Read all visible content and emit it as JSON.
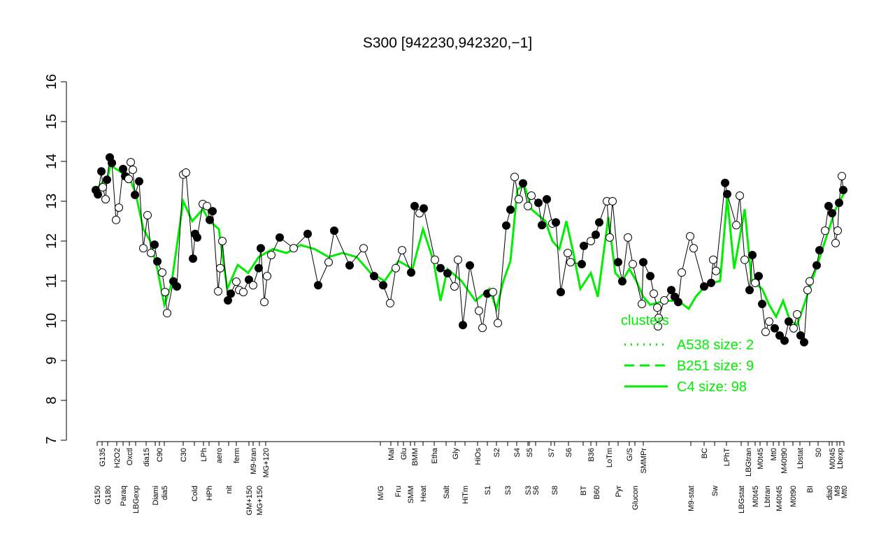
{
  "chart_data": {
    "type": "scatter",
    "title": "S300 [942230,942320,−1]",
    "xlim": [
      0,
      108
    ],
    "ylim": [
      7,
      16
    ],
    "yticks": [
      7,
      8,
      9,
      10,
      11,
      12,
      13,
      14,
      15,
      16
    ],
    "xticks": [
      {
        "value": 0.9,
        "label": "G150"
      },
      {
        "value": 1.6,
        "label": "G135"
      },
      {
        "value": 2.4,
        "label": "G180"
      },
      {
        "value": 3.7,
        "label": "H2O2"
      },
      {
        "value": 4.6,
        "label": "Paraq"
      },
      {
        "value": 5.5,
        "label": "Oxctl"
      },
      {
        "value": 6.4,
        "label": "LBGexp"
      },
      {
        "value": 7.9,
        "label": "dia15"
      },
      {
        "value": 9.2,
        "label": "Diami"
      },
      {
        "value": 9.8,
        "label": "C90"
      },
      {
        "value": 10.5,
        "label": "dia5"
      },
      {
        "value": 13.2,
        "label": "C30"
      },
      {
        "value": 14.8,
        "label": "Cold"
      },
      {
        "value": 16.1,
        "label": "LPh"
      },
      {
        "value": 16.9,
        "label": "HPh"
      },
      {
        "value": 18.3,
        "label": "aero"
      },
      {
        "value": 19.7,
        "label": "nit"
      },
      {
        "value": 20.8,
        "label": "ferm"
      },
      {
        "value": 22.6,
        "label": "GM+150"
      },
      {
        "value": 23.2,
        "label": "M9-tran"
      },
      {
        "value": 24.1,
        "label": "MG+150"
      },
      {
        "value": 25.0,
        "label": "MG+120"
      },
      {
        "value": 41.4,
        "label": "M/G"
      },
      {
        "value": 42.9,
        "label": "Mal"
      },
      {
        "value": 43.9,
        "label": "Fru"
      },
      {
        "value": 44.7,
        "label": "Glu"
      },
      {
        "value": 45.7,
        "label": "SMM"
      },
      {
        "value": 46.3,
        "label": "BMM"
      },
      {
        "value": 47.5,
        "label": "Heat"
      },
      {
        "value": 49.1,
        "label": "Etha"
      },
      {
        "value": 50.8,
        "label": "Salt"
      },
      {
        "value": 52.1,
        "label": "Gly"
      },
      {
        "value": 53.5,
        "label": "HiTm"
      },
      {
        "value": 55.3,
        "label": "HiOs"
      },
      {
        "value": 56.7,
        "label": "S1"
      },
      {
        "value": 58.0,
        "label": "S2"
      },
      {
        "value": 59.6,
        "label": "S3"
      },
      {
        "value": 60.9,
        "label": "S4"
      },
      {
        "value": 62.5,
        "label": "S3"
      },
      {
        "value": 62.7,
        "label": "S5"
      },
      {
        "value": 63.6,
        "label": "S6"
      },
      {
        "value": 65.8,
        "label": "S7"
      },
      {
        "value": 66.3,
        "label": "S8"
      },
      {
        "value": 68.3,
        "label": "S6"
      },
      {
        "value": 70.4,
        "label": "BT"
      },
      {
        "value": 71.5,
        "label": "B36"
      },
      {
        "value": 72.3,
        "label": "B60"
      },
      {
        "value": 74.1,
        "label": "LoTm"
      },
      {
        "value": 75.4,
        "label": "Pyr"
      },
      {
        "value": 77.0,
        "label": "G/S"
      },
      {
        "value": 77.8,
        "label": "Glucon"
      },
      {
        "value": 79.0,
        "label": "SMMPr"
      },
      {
        "value": 85.8,
        "label": "M9-stat"
      },
      {
        "value": 87.7,
        "label": "BC"
      },
      {
        "value": 89.2,
        "label": "Sw"
      },
      {
        "value": 90.9,
        "label": "LPhT"
      },
      {
        "value": 93.0,
        "label": "LBGstat"
      },
      {
        "value": 94.0,
        "label": "LBGtran"
      },
      {
        "value": 95.0,
        "label": "M0t45"
      },
      {
        "value": 95.7,
        "label": "M0t45"
      },
      {
        "value": 96.7,
        "label": "Lbtran"
      },
      {
        "value": 97.6,
        "label": "Mt0"
      },
      {
        "value": 98.4,
        "label": "M40t45"
      },
      {
        "value": 99.1,
        "label": "M40t90"
      },
      {
        "value": 100.4,
        "label": "M0t90"
      },
      {
        "value": 101.4,
        "label": "Lbstat"
      },
      {
        "value": 102.8,
        "label": "BI"
      },
      {
        "value": 104.0,
        "label": "S0"
      },
      {
        "value": 105.6,
        "label": "dia0"
      },
      {
        "value": 106.0,
        "label": "M0t45"
      },
      {
        "value": 106.7,
        "label": "M9"
      },
      {
        "value": 107.1,
        "label": "Lbexp"
      },
      {
        "value": 107.7,
        "label": "Mt0"
      }
    ],
    "x": [
      0.7,
      1.0,
      1.5,
      1.7,
      2.1,
      2.3,
      2.7,
      3.0,
      3.6,
      4.0,
      4.6,
      4.9,
      5.4,
      5.7,
      6.0,
      6.3,
      6.9,
      7.5,
      8.1,
      8.6,
      9.1,
      9.5,
      10.2,
      10.6,
      10.9,
      11.8,
      12.3,
      13.2,
      13.6,
      14.6,
      14.9,
      15.2,
      16.0,
      16.6,
      17.0,
      17.4,
      18.2,
      18.5,
      18.8,
      19.6,
      20.0,
      20.8,
      21.2,
      21.8,
      22.6,
      23.2,
      24.0,
      24.3,
      24.8,
      25.2,
      25.8,
      27.0,
      29.0,
      31.0,
      32.5,
      34.0,
      34.8,
      37.0,
      39.0,
      40.5,
      41.8,
      42.8,
      43.6,
      44.5,
      45.8,
      46.3,
      47.0,
      47.6,
      49.2,
      50.0,
      51.0,
      52.0,
      52.5,
      53.2,
      54.2,
      55.5,
      56.0,
      56.7,
      57.5,
      58.2,
      59.4,
      60.0,
      60.6,
      61.2,
      61.8,
      62.5,
      63.0,
      64.0,
      64.5,
      65.2,
      66.0,
      66.5,
      67.2,
      68.2,
      68.6,
      70.2,
      70.5,
      71.5,
      72.2,
      72.7,
      73.8,
      74.2,
      74.6,
      75.4,
      76.0,
      76.8,
      77.5,
      78.8,
      79.0,
      80.0,
      80.5,
      81.0,
      81.1,
      81.2,
      82.0,
      83.0,
      83.5,
      84.0,
      84.5,
      85.7,
      86.2,
      87.7,
      88.7,
      89.0,
      89.4,
      90.7,
      91.0,
      92.3,
      92.8,
      93.5,
      94.2,
      94.6,
      95.0,
      95.5,
      96.0,
      96.5,
      97.0,
      97.8,
      98.5,
      99.2,
      99.8,
      100.5,
      101.0,
      101.5,
      102.0,
      102.5,
      102.8,
      103.8,
      104.2,
      105.0,
      105.5,
      106.0,
      106.5,
      106.8,
      107.0,
      107.4,
      107.6
    ],
    "values": [
      13.28,
      13.17,
      13.75,
      13.35,
      13.05,
      13.54,
      14.1,
      13.96,
      12.53,
      12.84,
      13.81,
      13.63,
      13.56,
      13.98,
      13.79,
      13.16,
      13.5,
      11.82,
      12.65,
      11.7,
      11.91,
      11.49,
      11.21,
      10.72,
      10.19,
      10.99,
      10.86,
      13.67,
      13.72,
      11.56,
      12.18,
      12.09,
      12.93,
      12.88,
      12.53,
      12.75,
      10.74,
      11.32,
      12.0,
      10.51,
      10.68,
      10.98,
      10.77,
      10.72,
      11.03,
      10.89,
      11.32,
      11.82,
      10.47,
      11.12,
      11.65,
      12.09,
      11.82,
      12.18,
      10.89,
      11.47,
      12.26,
      11.39,
      11.82,
      11.12,
      10.89,
      10.44,
      11.32,
      11.77,
      11.21,
      12.88,
      12.7,
      12.82,
      11.53,
      11.32,
      11.19,
      10.86,
      11.53,
      9.89,
      11.39,
      10.25,
      9.82,
      10.68,
      10.72,
      9.94,
      12.39,
      12.79,
      13.61,
      13.05,
      13.45,
      12.88,
      13.14,
      12.96,
      12.4,
      13.05,
      12.44,
      12.47,
      10.72,
      11.7,
      11.47,
      11.42,
      11.88,
      12.0,
      12.16,
      12.47,
      13.0,
      12.09,
      13.0,
      11.47,
      10.99,
      12.09,
      11.42,
      10.42,
      11.47,
      11.12,
      10.68,
      10.33,
      9.86,
      10.07,
      10.51,
      10.77,
      10.6,
      10.47,
      11.21,
      12.12,
      11.82,
      10.86,
      10.95,
      11.53,
      11.25,
      13.46,
      13.18,
      12.4,
      13.14,
      11.53,
      10.77,
      11.65,
      10.95,
      11.12,
      10.42,
      9.72,
      9.98,
      9.81,
      9.63,
      9.5,
      9.98,
      9.81,
      10.16,
      9.63,
      9.46,
      10.77,
      10.99,
      11.39,
      11.77,
      12.26,
      12.88,
      12.7,
      11.95,
      12.26,
      12.96,
      13.63,
      13.28
    ],
    "point_colors": [
      "#000",
      "#000",
      "#000",
      "#fff",
      "#fff",
      "#000",
      "#000",
      "#000",
      "#fff",
      "#fff",
      "#000",
      "#000",
      "#fff",
      "#fff",
      "#fff",
      "#000",
      "#000",
      "#fff",
      "#fff",
      "#fff",
      "#000",
      "#000",
      "#fff",
      "#fff",
      "#fff",
      "#000",
      "#000",
      "#fff",
      "#fff",
      "#000",
      "#000",
      "#000",
      "#fff",
      "#fff",
      "#000",
      "#000",
      "#fff",
      "#fff",
      "#fff",
      "#000",
      "#000",
      "#fff",
      "#fff",
      "#fff",
      "#000",
      "#fff",
      "#000",
      "#000",
      "#fff",
      "#fff",
      "#fff",
      "#000",
      "#fff",
      "#000",
      "#000",
      "#fff",
      "#000",
      "#000",
      "#fff",
      "#000",
      "#000",
      "#fff",
      "#fff",
      "#fff",
      "#000",
      "#000",
      "#fff",
      "#000",
      "#fff",
      "#000",
      "#000",
      "#fff",
      "#fff",
      "#000",
      "#000",
      "#fff",
      "#fff",
      "#000",
      "#fff",
      "#fff",
      "#000",
      "#000",
      "#fff",
      "#fff",
      "#000",
      "#fff",
      "#fff",
      "#000",
      "#000",
      "#000",
      "#fff",
      "#000",
      "#000",
      "#fff",
      "#fff",
      "#000",
      "#000",
      "#fff",
      "#000",
      "#000",
      "#fff",
      "#fff",
      "#fff",
      "#000",
      "#000",
      "#fff",
      "#fff",
      "#fff",
      "#000",
      "#000",
      "#fff",
      "#fff",
      "#fff",
      "#fff",
      "#fff",
      "#000",
      "#000",
      "#000",
      "#fff",
      "#fff",
      "#fff",
      "#000",
      "#000",
      "#fff",
      "#fff",
      "#000",
      "#000",
      "#fff",
      "#fff",
      "#fff",
      "#000",
      "#000",
      "#fff",
      "#000",
      "#000",
      "#fff",
      "#fff",
      "#000",
      "#000",
      "#000",
      "#000",
      "#fff",
      "#fff",
      "#000",
      "#000",
      "#fff",
      "#fff",
      "#000",
      "#000",
      "#fff",
      "#000",
      "#000",
      "#fff",
      "#fff",
      "#000",
      "#fff",
      "#000"
    ],
    "cluster_line": {
      "x": [
        0.7,
        2.4,
        2.8,
        4.6,
        5.5,
        6.4,
        7.5,
        8.5,
        9.5,
        10.5,
        11.5,
        13.2,
        14.5,
        16,
        17,
        18.3,
        19.5,
        21,
        22.5,
        24,
        26,
        28,
        30,
        32,
        34,
        36,
        38,
        40,
        42,
        44,
        46,
        47.5,
        49,
        50,
        51,
        53,
        55,
        57,
        58,
        59,
        60,
        61,
        62,
        63,
        65,
        66,
        67,
        68,
        69,
        70,
        71.5,
        72.5,
        74,
        75,
        76,
        77,
        78,
        79,
        80,
        82,
        84,
        85.5,
        86.5,
        88,
        90,
        91,
        92,
        93.5,
        94.5,
        96,
        97,
        98,
        99,
        100,
        101,
        102,
        103.5,
        105,
        106.5,
        107.7
      ],
      "values": [
        13.3,
        13.6,
        13.9,
        13.7,
        13.6,
        13.2,
        12.3,
        12.0,
        11.3,
        10.4,
        10.9,
        13.0,
        12.5,
        12.8,
        12.5,
        12.3,
        10.8,
        11.4,
        11.2,
        11.6,
        11.8,
        11.7,
        11.9,
        11.8,
        11.6,
        11.7,
        11.6,
        11.2,
        11.0,
        11.5,
        11.3,
        12.3,
        11.5,
        10.5,
        11.3,
        11.0,
        10.5,
        10.8,
        10.3,
        11.0,
        11.5,
        13.3,
        13.4,
        12.8,
        12.5,
        12.0,
        11.8,
        12.5,
        11.7,
        10.8,
        11.2,
        10.6,
        12.6,
        11.2,
        11.0,
        11.3,
        11.0,
        10.6,
        10.4,
        10.5,
        10.5,
        10.3,
        10.6,
        10.9,
        11.0,
        13.1,
        11.3,
        12.8,
        11.0,
        10.8,
        10.4,
        10.1,
        10.5,
        10.0,
        9.9,
        10.4,
        11.2,
        12.0,
        12.8,
        13.2
      ]
    },
    "line_color": "#00ee00",
    "legend": {
      "title": "clusters",
      "entries": [
        {
          "name": "A538 size: 2",
          "dash": "dotted"
        },
        {
          "name": "B251 size: 9",
          "dash": "dashed"
        },
        {
          "name": "C4 size: 98",
          "dash": "solid"
        }
      ]
    }
  }
}
